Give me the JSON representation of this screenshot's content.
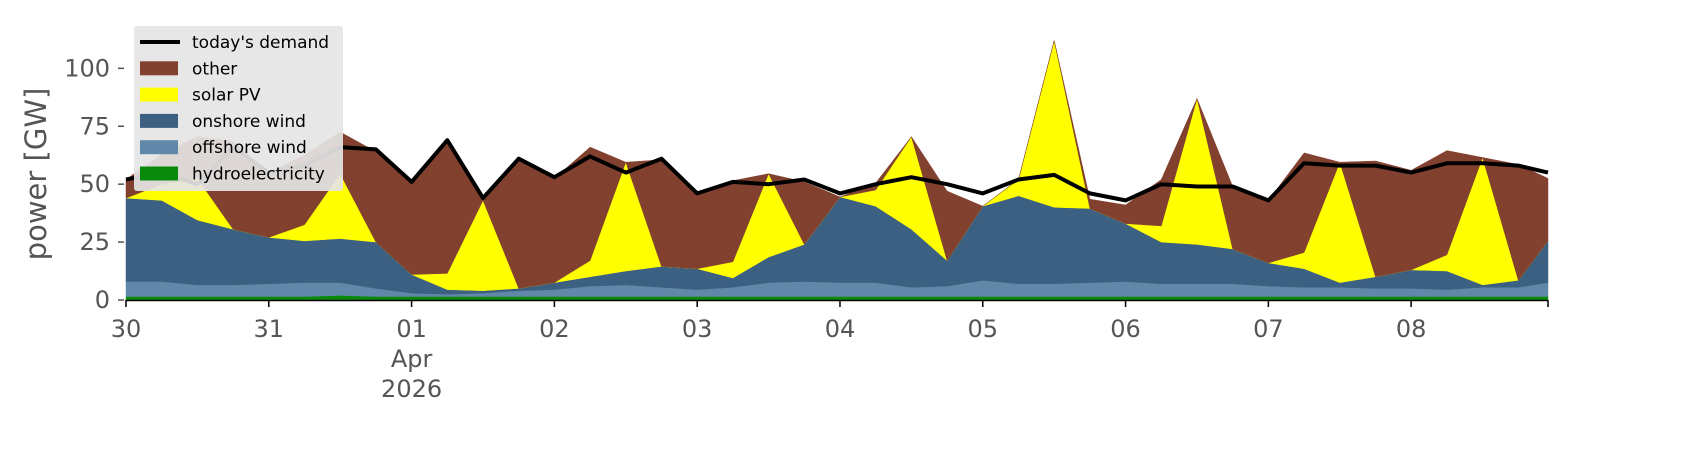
{
  "colors": {
    "demand": "#000000",
    "other": "#82402f",
    "solar_pv": "#ffff00",
    "onshore_wind": "#3c6082",
    "offshore_wind": "#6188a8",
    "hydroelectricity": "#0a8a0a",
    "legend_bg": "#e5e5e5",
    "tick_text": "#555555"
  },
  "chart_data": {
    "type": "area",
    "title": "",
    "ylabel": "power [GW]",
    "xlabel": "",
    "ylim": [
      0,
      120
    ],
    "yticks": [
      0,
      25,
      50,
      75,
      100
    ],
    "ytick_labels": [
      "0",
      "25",
      "50",
      "75",
      "100"
    ],
    "x_range": [
      "2026-03-30 00:00",
      "2026-04-08 23:00"
    ],
    "xticks": [
      "2026-03-30",
      "2026-03-31",
      "2026-04-01",
      "2026-04-02",
      "2026-04-03",
      "2026-04-04",
      "2026-04-05",
      "2026-04-06",
      "2026-04-07",
      "2026-04-08"
    ],
    "xtick_labels": [
      "30",
      "31",
      "01",
      "02",
      "03",
      "04",
      "05",
      "06",
      "07",
      "08"
    ],
    "xtick_sublabels": {
      "month": "Apr",
      "year": "2026"
    },
    "grid": false,
    "legend_position": "top-left",
    "legend": [
      "today's demand",
      "other",
      "solar PV",
      "onshore wind",
      "offshore wind",
      "hydroelectricity"
    ],
    "x_time_points": [
      "2026-03-30 00:00",
      "2026-03-30 06:00",
      "2026-03-30 12:00",
      "2026-03-30 18:00",
      "2026-03-31 00:00",
      "2026-03-31 06:00",
      "2026-03-31 12:00",
      "2026-03-31 18:00",
      "2026-04-01 00:00",
      "2026-04-01 06:00",
      "2026-04-01 12:00",
      "2026-04-01 18:00",
      "2026-04-02 00:00",
      "2026-04-02 06:00",
      "2026-04-02 12:00",
      "2026-04-02 18:00",
      "2026-04-03 00:00",
      "2026-04-03 06:00",
      "2026-04-03 12:00",
      "2026-04-03 18:00",
      "2026-04-04 00:00",
      "2026-04-04 06:00",
      "2026-04-04 12:00",
      "2026-04-04 18:00",
      "2026-04-05 00:00",
      "2026-04-05 06:00",
      "2026-04-05 12:00",
      "2026-04-05 18:00",
      "2026-04-06 00:00",
      "2026-04-06 06:00",
      "2026-04-06 12:00",
      "2026-04-06 18:00",
      "2026-04-07 00:00",
      "2026-04-07 06:00",
      "2026-04-07 12:00",
      "2026-04-07 18:00",
      "2026-04-08 00:00",
      "2026-04-08 06:00",
      "2026-04-08 12:00",
      "2026-04-08 18:00",
      "2026-04-08 23:00"
    ],
    "series": [
      {
        "name": "hydroelectricity",
        "values": [
          1.5,
          1.5,
          1.5,
          1.5,
          1.5,
          1.5,
          2,
          1.5,
          1.5,
          1.5,
          1.5,
          1.5,
          1.5,
          1.5,
          1.5,
          1.5,
          1.5,
          1.5,
          1.5,
          1.5,
          1.5,
          1.5,
          1.5,
          1.5,
          1.5,
          1.5,
          1.5,
          1.5,
          1.5,
          1.5,
          1.5,
          1.5,
          1.5,
          1.5,
          1.5,
          1.5,
          1.5,
          1.5,
          1.5,
          1.5,
          1.5
        ]
      },
      {
        "name": "offshore wind",
        "values": [
          6.5,
          6.5,
          5,
          5,
          5.5,
          6,
          5.5,
          3.5,
          1.5,
          1,
          1.5,
          2.5,
          3,
          4.5,
          5,
          4,
          3,
          4,
          6,
          6.5,
          6,
          6,
          4,
          4.5,
          7,
          5.5,
          5.5,
          6,
          6.5,
          5.5,
          5.5,
          5.5,
          4.5,
          4,
          4,
          3.5,
          3.5,
          3,
          4,
          4,
          6
        ]
      },
      {
        "name": "onshore wind",
        "values": [
          36,
          35,
          28,
          24,
          20,
          18,
          19,
          20,
          8,
          2,
          1,
          1,
          3,
          4,
          6,
          9,
          9,
          4,
          11,
          16,
          37,
          33,
          25,
          11,
          32,
          38,
          33,
          32,
          25,
          18,
          17,
          15,
          10,
          8,
          2,
          5,
          8,
          8,
          1,
          3,
          18
        ]
      },
      {
        "name": "solar PV",
        "values": [
          0,
          7,
          18,
          0,
          0,
          7,
          28,
          0,
          0,
          7,
          39,
          0,
          0,
          7,
          47,
          0,
          0,
          7,
          36,
          0,
          0,
          7,
          40,
          0,
          0,
          7,
          72,
          0,
          0,
          7,
          63,
          0,
          0,
          7,
          52,
          0,
          0,
          7,
          55,
          0,
          0
        ]
      },
      {
        "name": "other",
        "values": [
          8,
          13,
          18,
          38,
          28,
          30,
          18,
          39,
          40,
          57,
          0,
          56,
          45,
          49,
          0,
          46,
          32,
          35,
          0,
          27,
          0,
          3,
          0,
          30,
          0,
          0,
          0,
          4,
          8,
          20,
          0,
          27,
          27,
          43,
          0,
          50,
          43,
          45,
          0,
          50,
          27
        ]
      },
      {
        "name": "today's demand",
        "values": [
          52,
          55,
          50,
          66,
          55,
          58,
          66,
          65,
          51,
          69,
          44,
          61,
          53,
          62,
          55,
          61,
          46,
          51,
          50,
          52,
          46,
          50,
          53,
          50,
          46,
          52,
          54,
          46,
          43,
          50,
          49,
          49,
          43,
          59,
          58,
          58,
          55,
          59,
          59,
          58,
          55
        ]
      }
    ]
  }
}
